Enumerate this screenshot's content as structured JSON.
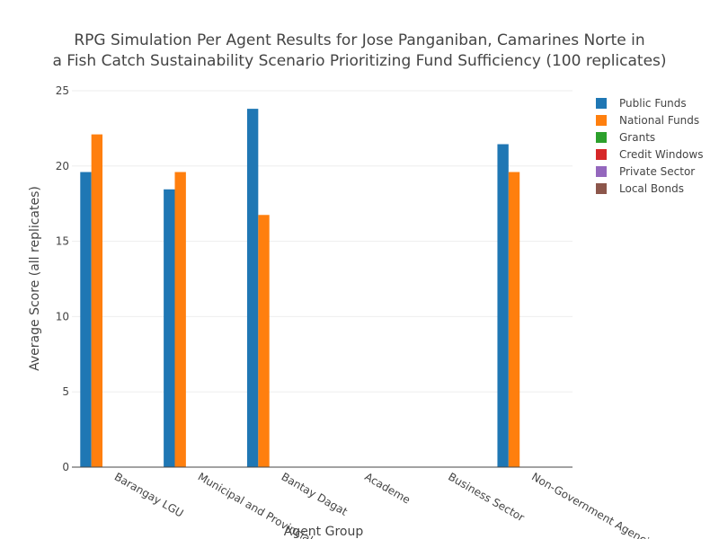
{
  "chart_data": {
    "type": "bar",
    "title_line1": "RPG Simulation Per Agent Results for Jose Panganiban, Camarines Norte in",
    "title_line2": "a Fish Catch Sustainability Scenario Prioritizing Fund Sufficiency (100 replicates)",
    "xlabel": "Agent Group",
    "ylabel": "Average Score (all replicates)",
    "ylim": [
      0,
      25
    ],
    "yticks": [
      0,
      5,
      10,
      15,
      20,
      25
    ],
    "grid": true,
    "legend_position": "top-right",
    "categories": [
      "Barangay LGU",
      "Municipal and Provincial...",
      "Bantay Dagat",
      "Academe",
      "Business Sector",
      "Non-Government Agencies"
    ],
    "series": [
      {
        "name": "Public Funds",
        "color": "#1f77b4",
        "values": [
          19.6,
          18.45,
          23.8,
          0,
          0,
          21.45
        ]
      },
      {
        "name": "National Funds",
        "color": "#ff7f0e",
        "values": [
          22.1,
          19.6,
          16.75,
          0,
          0,
          19.6
        ]
      },
      {
        "name": "Grants",
        "color": "#2ca02c",
        "values": [
          0,
          0,
          0,
          0,
          0,
          0
        ]
      },
      {
        "name": "Credit Windows",
        "color": "#d62728",
        "values": [
          0,
          0,
          0,
          0,
          0,
          0
        ]
      },
      {
        "name": "Private Sector",
        "color": "#9467bd",
        "values": [
          0,
          0,
          0,
          0,
          0,
          0
        ]
      },
      {
        "name": "Local Bonds",
        "color": "#8c564b",
        "values": [
          0,
          0,
          0,
          0,
          0,
          0
        ]
      }
    ]
  }
}
